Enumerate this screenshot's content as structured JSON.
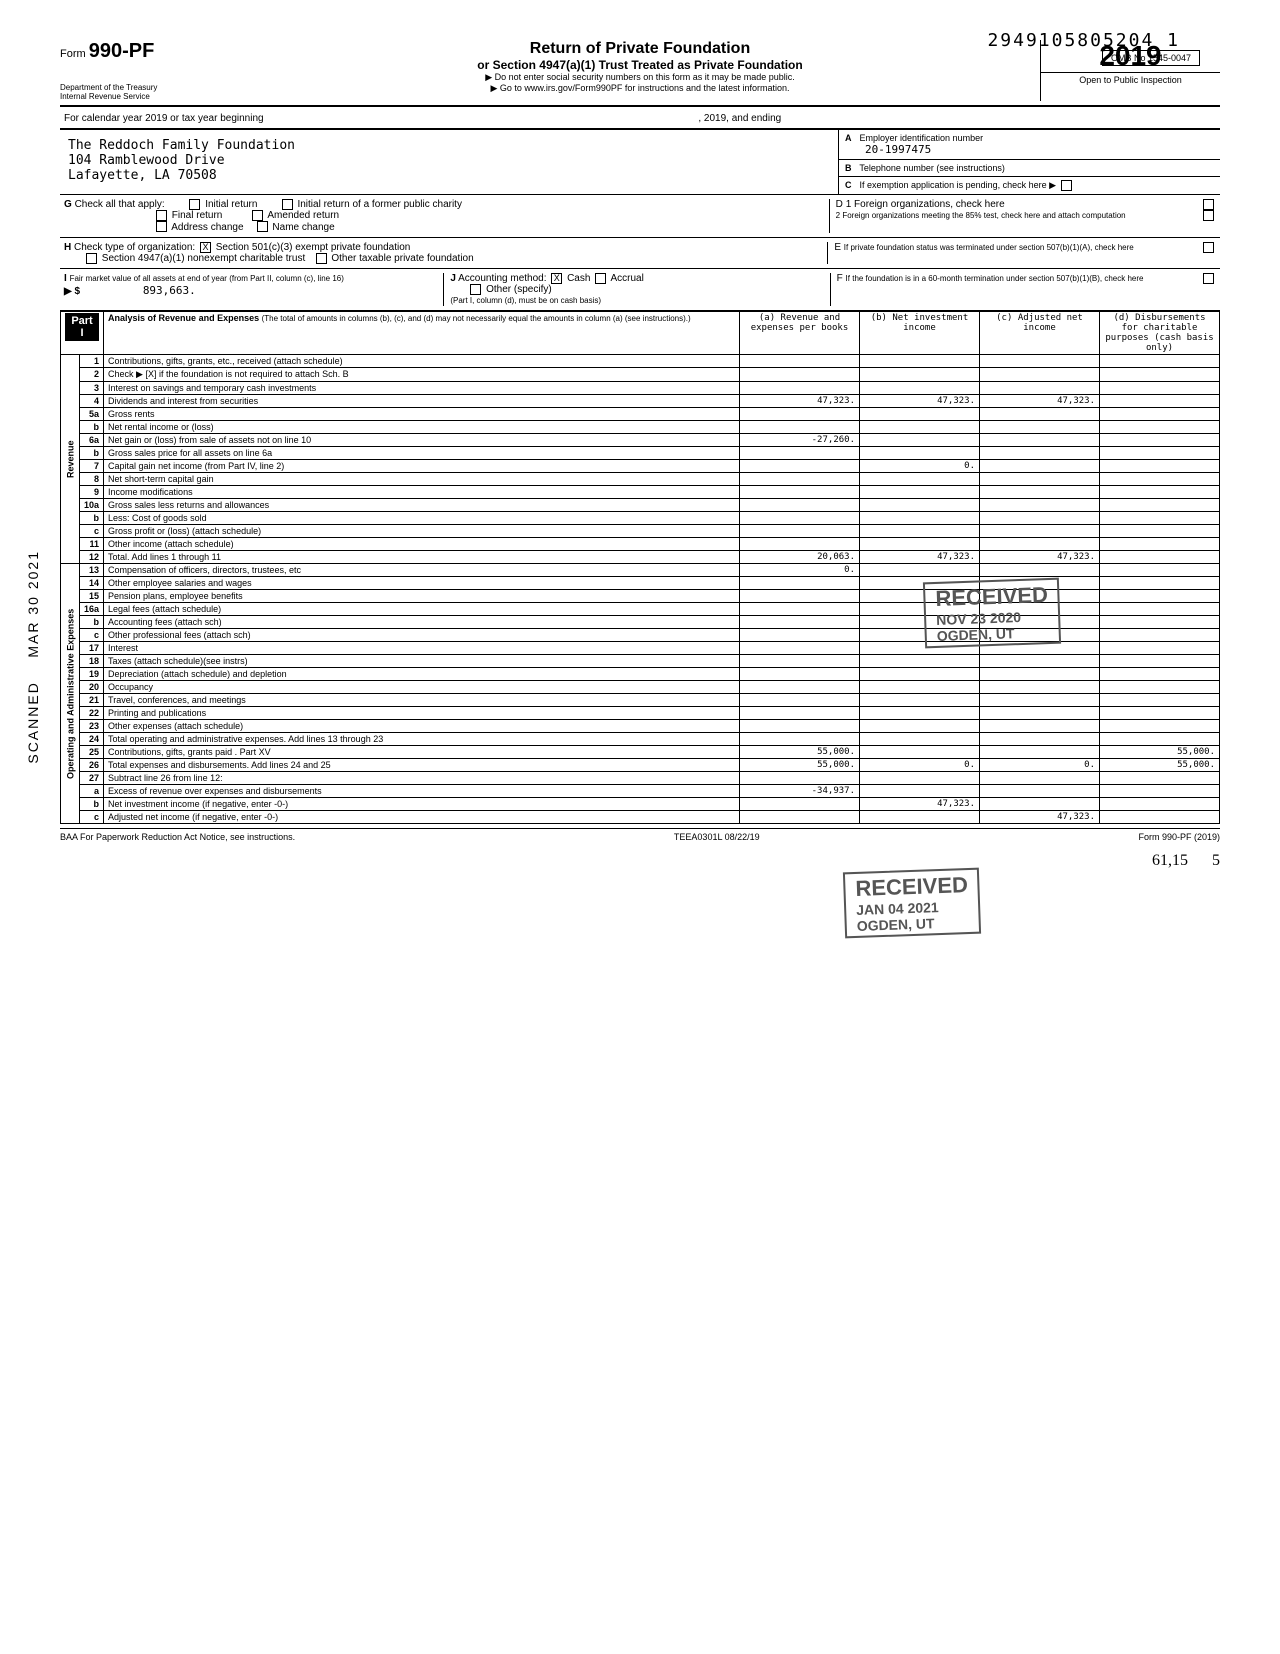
{
  "header": {
    "code": "2949105805204 1",
    "omb": "OMB No 1545-0047",
    "form_prefix": "Form",
    "form_number": "990-PF",
    "title": "Return of Private Foundation",
    "subtitle": "or Section 4947(a)(1) Trust Treated as Private Foundation",
    "note1": "▶ Do not enter social security numbers on this form as it may be made public.",
    "note2": "▶ Go to www.irs.gov/Form990PF for instructions and the latest information.",
    "dept": "Department of the Treasury\nInternal Revenue Service",
    "year": "2019",
    "open": "Open to Public Inspection",
    "cal_year": "For calendar year 2019 or tax year beginning",
    "cal_mid": ", 2019, and ending"
  },
  "entity": {
    "name": "The Reddoch Family Foundation",
    "addr1": "104 Ramblewood Drive",
    "addr2": "Lafayette, LA 70508"
  },
  "right_boxes": {
    "A": {
      "label": "A",
      "text": "Employer identification number",
      "value": "20-1997475"
    },
    "B": {
      "label": "B",
      "text": "Telephone number (see instructions)",
      "value": ""
    },
    "C": {
      "label": "C",
      "text": "If exemption application is pending, check here ▶"
    },
    "D1": {
      "label": "D",
      "text": "1 Foreign organizations, check here"
    },
    "D2": {
      "text": "2 Foreign organizations meeting the 85% test, check here and attach computation"
    },
    "E": {
      "label": "E",
      "text": "If private foundation status was terminated under section 507(b)(1)(A), check here"
    },
    "F": {
      "label": "F",
      "text": "If the foundation is in a 60-month termination under section 507(b)(1)(B), check here"
    }
  },
  "checks": {
    "G": {
      "label": "G",
      "text": "Check all that apply:",
      "opts": [
        "Initial return",
        "Final return",
        "Address change",
        "Initial return of a former public charity",
        "Amended return",
        "Name change"
      ]
    },
    "H": {
      "label": "H",
      "text": "Check type of organization:",
      "opt1": "Section 501(c)(3) exempt private foundation",
      "opt1_checked": "X",
      "opt2": "Section 4947(a)(1) nonexempt charitable trust",
      "opt3": "Other taxable private foundation"
    },
    "I": {
      "label": "I",
      "text": "Fair market value of all assets at end of year (from Part II, column (c), line 16)",
      "value": "893,663."
    },
    "J": {
      "label": "J",
      "text": "Accounting method:",
      "cash": "Cash",
      "cash_checked": "X",
      "accrual": "Accrual",
      "other": "Other (specify)",
      "note": "(Part I, column (d), must be on cash basis)"
    }
  },
  "part1": {
    "title": "Part I",
    "heading": "Analysis of Revenue and Expenses",
    "heading_note": "(The total of amounts in columns (b), (c), and (d) may not necessarily equal the amounts in column (a) (see instructions).)",
    "col_a": "(a) Revenue and expenses per books",
    "col_b": "(b) Net investment income",
    "col_c": "(c) Adjusted net income",
    "col_d": "(d) Disbursements for charitable purposes (cash basis only)",
    "revenue_label": "Revenue",
    "expenses_label": "Operating and Administrative Expenses"
  },
  "rows": [
    {
      "n": "1",
      "desc": "Contributions, gifts, grants, etc., received (attach schedule)"
    },
    {
      "n": "2",
      "desc": "Check ▶ [X] if the foundation is not required to attach Sch. B"
    },
    {
      "n": "3",
      "desc": "Interest on savings and temporary cash investments"
    },
    {
      "n": "4",
      "desc": "Dividends and interest from securities",
      "a": "47,323.",
      "b": "47,323.",
      "c": "47,323."
    },
    {
      "n": "5a",
      "desc": "Gross rents"
    },
    {
      "n": "b",
      "desc": "Net rental income or (loss)"
    },
    {
      "n": "6a",
      "desc": "Net gain or (loss) from sale of assets not on line 10",
      "a": "-27,260."
    },
    {
      "n": "b",
      "desc": "Gross sales price for all assets on line 6a"
    },
    {
      "n": "7",
      "desc": "Capital gain net income (from Part IV, line 2)",
      "b": "0."
    },
    {
      "n": "8",
      "desc": "Net short-term capital gain"
    },
    {
      "n": "9",
      "desc": "Income modifications"
    },
    {
      "n": "10a",
      "desc": "Gross sales less returns and allowances"
    },
    {
      "n": "b",
      "desc": "Less: Cost of goods sold"
    },
    {
      "n": "c",
      "desc": "Gross profit or (loss) (attach schedule)"
    },
    {
      "n": "11",
      "desc": "Other income (attach schedule)"
    },
    {
      "n": "12",
      "desc": "Total. Add lines 1 through 11",
      "a": "20,063.",
      "b": "47,323.",
      "c": "47,323."
    },
    {
      "n": "13",
      "desc": "Compensation of officers, directors, trustees, etc",
      "a": "0."
    },
    {
      "n": "14",
      "desc": "Other employee salaries and wages"
    },
    {
      "n": "15",
      "desc": "Pension plans, employee benefits"
    },
    {
      "n": "16a",
      "desc": "Legal fees (attach schedule)"
    },
    {
      "n": "b",
      "desc": "Accounting fees (attach sch)"
    },
    {
      "n": "c",
      "desc": "Other professional fees (attach sch)"
    },
    {
      "n": "17",
      "desc": "Interest"
    },
    {
      "n": "18",
      "desc": "Taxes (attach schedule)(see instrs)"
    },
    {
      "n": "19",
      "desc": "Depreciation (attach schedule) and depletion"
    },
    {
      "n": "20",
      "desc": "Occupancy"
    },
    {
      "n": "21",
      "desc": "Travel, conferences, and meetings"
    },
    {
      "n": "22",
      "desc": "Printing and publications"
    },
    {
      "n": "23",
      "desc": "Other expenses (attach schedule)"
    },
    {
      "n": "24",
      "desc": "Total operating and administrative expenses. Add lines 13 through 23"
    },
    {
      "n": "25",
      "desc": "Contributions, gifts, grants paid . Part XV",
      "a": "55,000.",
      "d": "55,000."
    },
    {
      "n": "26",
      "desc": "Total expenses and disbursements. Add lines 24 and 25",
      "a": "55,000.",
      "b": "0.",
      "c": "0.",
      "d": "55,000."
    },
    {
      "n": "27",
      "desc": "Subtract line 26 from line 12:"
    },
    {
      "n": "a",
      "desc": "Excess of revenue over expenses and disbursements",
      "a": "-34,937."
    },
    {
      "n": "b",
      "desc": "Net investment income (if negative, enter -0-)",
      "b": "47,323."
    },
    {
      "n": "c",
      "desc": "Adjusted net income (if negative, enter -0-)",
      "c": "47,323."
    }
  ],
  "stamps": {
    "received1": "RECEIVED",
    "date1": "NOV 23 2020",
    "loc1": "OGDEN, UT",
    "received2": "RECEIVED",
    "date2": "JAN 04 2021",
    "loc2": "OGDEN, UT"
  },
  "side": {
    "scanned": "SCANNED",
    "date": "MAR 30 2021"
  },
  "footer": {
    "left": "BAA For Paperwork Reduction Act Notice, see instructions.",
    "mid": "TEEA0301L 08/22/19",
    "right": "Form 990-PF (2019)",
    "hand1": "61,15",
    "hand2": "5"
  }
}
